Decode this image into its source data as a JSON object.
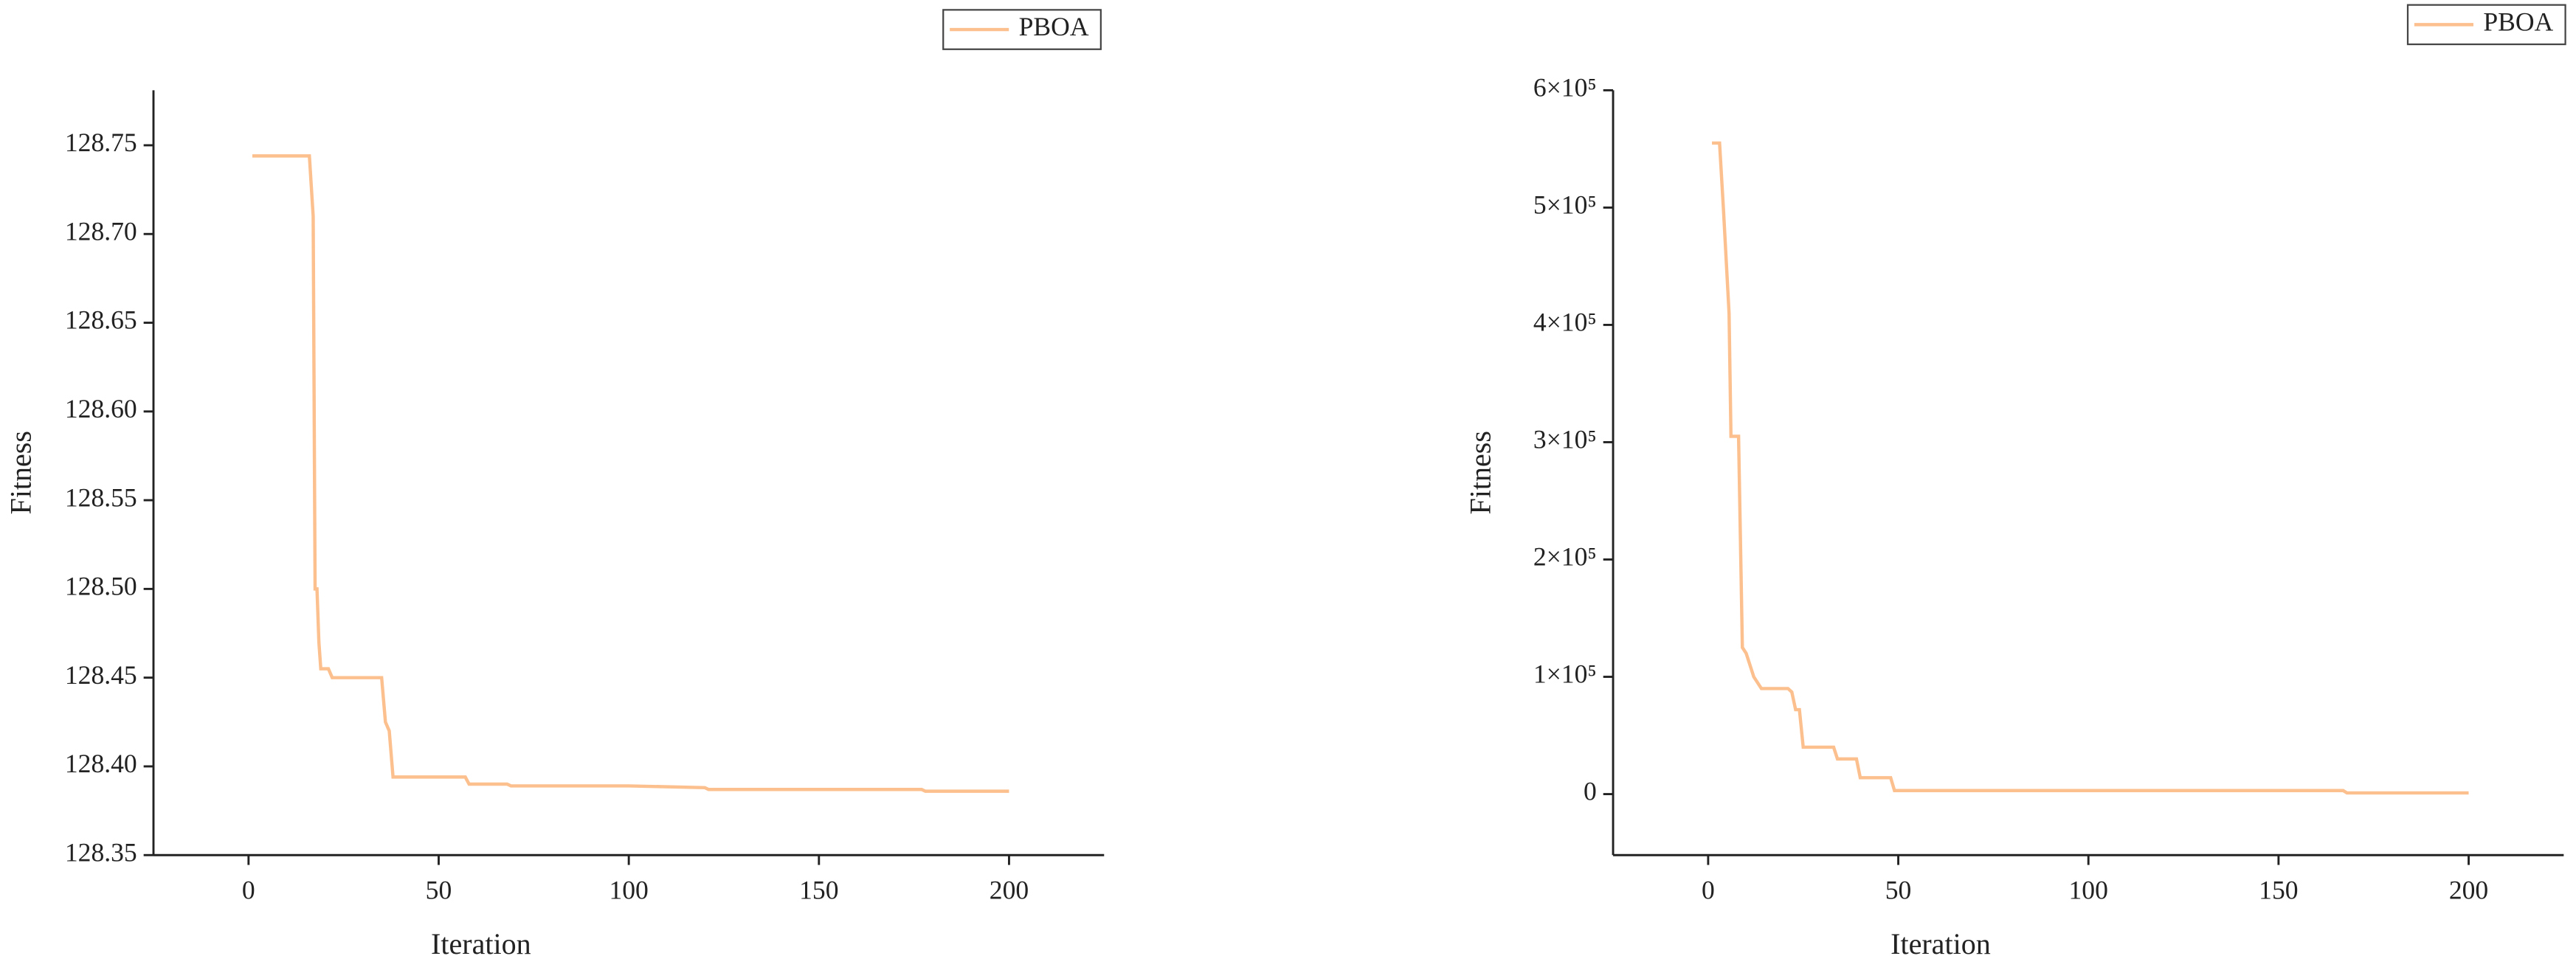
{
  "chart_data": [
    {
      "type": "line",
      "xlabel": "Iteration",
      "ylabel": "Fitness",
      "x": [
        1,
        16,
        17,
        17.5,
        18,
        18.5,
        19,
        21,
        22,
        35,
        36,
        37,
        38,
        57,
        58,
        68,
        69,
        100,
        120,
        121,
        177,
        178,
        200
      ],
      "series": [
        {
          "name": "PBOA",
          "color": "#fcc08e",
          "values": [
            128.744,
            128.744,
            128.71,
            128.5,
            128.5,
            128.47,
            128.455,
            128.455,
            128.45,
            128.45,
            128.425,
            128.42,
            128.394,
            128.394,
            128.39,
            128.39,
            128.389,
            128.389,
            128.388,
            128.387,
            128.387,
            128.386,
            128.386
          ]
        }
      ],
      "xlim": [
        -25,
        225
      ],
      "xticks": [
        0,
        50,
        100,
        150,
        200
      ],
      "ylim": [
        128.35,
        128.781
      ],
      "yticks": [
        128.35,
        {
          "value": 128.4,
          "label": "128.40"
        },
        128.45,
        {
          "value": 128.5,
          "label": "128.50"
        },
        128.55,
        {
          "value": 128.6,
          "label": "128.60"
        },
        128.65,
        {
          "value": 128.7,
          "label": "128.70"
        },
        128.75
      ],
      "legend": "top-right"
    },
    {
      "type": "line",
      "xlabel": "Iteration",
      "ylabel": "Fitness",
      "x": [
        1,
        3,
        4,
        5,
        5.5,
        6,
        8,
        9,
        10,
        12,
        14,
        21,
        22,
        23,
        24,
        25,
        26,
        33,
        34,
        39,
        40,
        48,
        49,
        167,
        168,
        200
      ],
      "series": [
        {
          "name": "PBOA",
          "color": "#fcc08e",
          "values": [
            555000,
            555000,
            500000,
            440000,
            410000,
            305000,
            305000,
            125000,
            120000,
            100000,
            90000,
            90000,
            87000,
            72000,
            72000,
            40000,
            40000,
            40000,
            30000,
            30000,
            14000,
            14000,
            3000,
            3000,
            1000,
            1000
          ]
        }
      ],
      "xlim": [
        -25,
        225
      ],
      "xticks": [
        0,
        50,
        100,
        150,
        200
      ],
      "ylim": [
        -52000,
        600000
      ],
      "yticks": [
        0,
        {
          "value": 100000,
          "label": "1×10⁵"
        },
        {
          "value": 200000,
          "label": "2×10⁵"
        },
        {
          "value": 300000,
          "label": "3×10⁵"
        },
        {
          "value": 400000,
          "label": "4×10⁵"
        },
        {
          "value": 500000,
          "label": "5×10⁵"
        },
        {
          "value": 600000,
          "label": "6×10⁵"
        }
      ],
      "legend": "top-right"
    }
  ]
}
